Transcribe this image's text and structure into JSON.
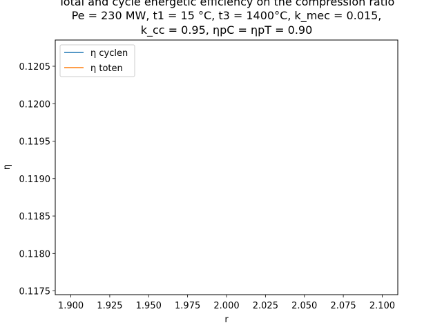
{
  "chart_data": {
    "type": "line",
    "title_lines": [
      "Total and cycle energetic efficiency on the compression ratio",
      "Pe = 230 MW, t1 = 15 °C, t3 = 1400°C, k_mec = 0.015,",
      "k_cc = 0.95, ηpC = ηpT = 0.90"
    ],
    "xlabel": "r",
    "ylabel": "η",
    "xlim": [
      1.89,
      2.11
    ],
    "ylim": [
      0.11745,
      0.12085
    ],
    "x_ticks": [
      1.9,
      1.925,
      1.95,
      1.975,
      2.0,
      2.025,
      2.05,
      2.075,
      2.1
    ],
    "x_tick_labels": [
      "1.900",
      "1.925",
      "1.950",
      "1.975",
      "2.000",
      "2.025",
      "2.050",
      "2.075",
      "2.100"
    ],
    "y_ticks": [
      0.1175,
      0.118,
      0.1185,
      0.119,
      0.1195,
      0.12,
      0.1205
    ],
    "y_tick_labels": [
      "0.1175",
      "0.1180",
      "0.1185",
      "0.1190",
      "0.1195",
      "0.1200",
      "0.1205"
    ],
    "grid": false,
    "legend_position": "upper-left",
    "series": [
      {
        "name": "η cyclen",
        "color": "#1f77b4",
        "x": [],
        "y": []
      },
      {
        "name": "η toten",
        "color": "#ff7f0e",
        "x": [],
        "y": []
      }
    ]
  }
}
